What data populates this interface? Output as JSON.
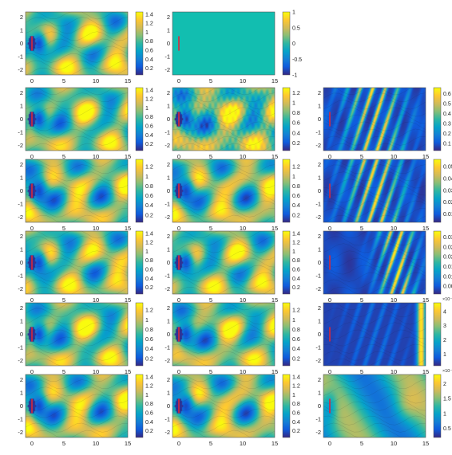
{
  "figure": {
    "rows": 6,
    "cols": 3,
    "x_ticks": [
      "0",
      "5",
      "10",
      "15"
    ],
    "y_ticks": [
      "2",
      "1",
      "0",
      "-1",
      "-2"
    ],
    "xlim": [
      -1,
      15
    ],
    "ylim": [
      -2.4,
      2.4
    ],
    "colormap": [
      "#352a87",
      "#0f5cdd",
      "#1481d6",
      "#06a4ca",
      "#2eb7a4",
      "#87bf77",
      "#d1bb59",
      "#fec832",
      "#f9fb0e"
    ],
    "body_color": "#d9283a"
  },
  "chart_data": [
    {
      "type": "heatmap",
      "row": 1,
      "col": 1,
      "field": "speed",
      "clim": [
        0.05,
        1.45
      ],
      "colorbar_ticks": [
        "1.4",
        "1.2",
        "1",
        "0.8",
        "0.6",
        "0.4",
        "0.2"
      ],
      "colorbar_multiplier": ""
    },
    {
      "type": "heatmap",
      "row": 1,
      "col": 2,
      "field": "uniform",
      "clim": [
        -1,
        1
      ],
      "colorbar_ticks": [
        "1",
        "0.5",
        "0",
        "-0.5",
        "-1"
      ],
      "colorbar_multiplier": ""
    },
    {
      "type": "heatmap",
      "row": 2,
      "col": 1,
      "field": "speed",
      "clim": [
        0.05,
        1.45
      ],
      "colorbar_ticks": [
        "1.4",
        "1.2",
        "1",
        "0.8",
        "0.6",
        "0.4",
        "0.2"
      ],
      "colorbar_multiplier": ""
    },
    {
      "type": "heatmap",
      "row": 2,
      "col": 2,
      "field": "speed_rough",
      "clim": [
        0.05,
        1.3
      ],
      "colorbar_ticks": [
        "1.2",
        "1",
        "0.8",
        "0.6",
        "0.4",
        "0.2"
      ],
      "colorbar_multiplier": ""
    },
    {
      "type": "heatmap",
      "row": 2,
      "col": 3,
      "field": "error",
      "clim": [
        0.03,
        0.66
      ],
      "colorbar_ticks": [
        "0.6",
        "0.5",
        "0.4",
        "0.3",
        "0.2",
        "0.1"
      ],
      "colorbar_multiplier": ""
    },
    {
      "type": "heatmap",
      "row": 3,
      "col": 1,
      "field": "speed",
      "clim": [
        0.05,
        1.35
      ],
      "colorbar_ticks": [
        "1.2",
        "1",
        "0.8",
        "0.6",
        "0.4",
        "0.2"
      ],
      "colorbar_multiplier": ""
    },
    {
      "type": "heatmap",
      "row": 3,
      "col": 2,
      "field": "speed",
      "clim": [
        0.05,
        1.35
      ],
      "colorbar_ticks": [
        "1.2",
        "1",
        "0.8",
        "0.6",
        "0.4",
        "0.2"
      ],
      "colorbar_multiplier": ""
    },
    {
      "type": "heatmap",
      "row": 3,
      "col": 3,
      "field": "error",
      "clim": [
        0.003,
        0.056
      ],
      "colorbar_ticks": [
        "0.05",
        "0.04",
        "0.03",
        "0.02",
        "0.01"
      ],
      "colorbar_multiplier": ""
    },
    {
      "type": "heatmap",
      "row": 4,
      "col": 1,
      "field": "speed",
      "clim": [
        0.05,
        1.45
      ],
      "colorbar_ticks": [
        "1.4",
        "1.2",
        "1",
        "0.8",
        "0.6",
        "0.4",
        "0.2"
      ],
      "colorbar_multiplier": ""
    },
    {
      "type": "heatmap",
      "row": 4,
      "col": 2,
      "field": "speed",
      "clim": [
        0.05,
        1.45
      ],
      "colorbar_ticks": [
        "1.4",
        "1.2",
        "1",
        "0.8",
        "0.6",
        "0.4",
        "0.2"
      ],
      "colorbar_multiplier": ""
    },
    {
      "type": "heatmap",
      "row": 4,
      "col": 3,
      "field": "error_sparse",
      "clim": [
        0.001,
        0.033
      ],
      "colorbar_ticks": [
        "0.03",
        "0.025",
        "0.02",
        "0.015",
        "0.01",
        "0.005"
      ],
      "colorbar_multiplier": ""
    },
    {
      "type": "heatmap",
      "row": 5,
      "col": 1,
      "field": "speed",
      "clim": [
        0.05,
        1.35
      ],
      "colorbar_ticks": [
        "1.2",
        "1",
        "0.8",
        "0.6",
        "0.4",
        "0.2"
      ],
      "colorbar_multiplier": ""
    },
    {
      "type": "heatmap",
      "row": 5,
      "col": 2,
      "field": "speed",
      "clim": [
        0.05,
        1.35
      ],
      "colorbar_ticks": [
        "1.2",
        "1",
        "0.8",
        "0.6",
        "0.4",
        "0.2"
      ],
      "colorbar_multiplier": ""
    },
    {
      "type": "heatmap",
      "row": 5,
      "col": 3,
      "field": "error_edge",
      "clim": [
        0.2,
        4.6
      ],
      "colorbar_ticks": [
        "4",
        "3",
        "2",
        "1"
      ],
      "colorbar_multiplier": "×10⁻³"
    },
    {
      "type": "heatmap",
      "row": 6,
      "col": 1,
      "field": "speed",
      "clim": [
        0.05,
        1.45
      ],
      "colorbar_ticks": [
        "1.4",
        "1.2",
        "1",
        "0.8",
        "0.6",
        "0.4",
        "0.2"
      ],
      "colorbar_multiplier": ""
    },
    {
      "type": "heatmap",
      "row": 6,
      "col": 2,
      "field": "speed",
      "clim": [
        0.05,
        1.45
      ],
      "colorbar_ticks": [
        "1.4",
        "1.2",
        "1",
        "0.8",
        "0.6",
        "0.4",
        "0.2"
      ],
      "colorbar_multiplier": ""
    },
    {
      "type": "heatmap",
      "row": 6,
      "col": 3,
      "field": "error_smooth",
      "clim": [
        0.2,
        2.3
      ],
      "colorbar_ticks": [
        "2",
        "1.5",
        "1",
        "0.5"
      ],
      "colorbar_multiplier": "×10⁻⁴"
    }
  ]
}
